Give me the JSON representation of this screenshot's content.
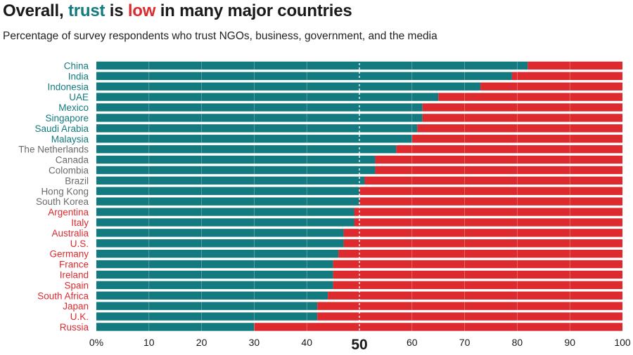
{
  "title": {
    "part1": "Overall, ",
    "part2": "trust",
    "part3": " is ",
    "part4": "low",
    "part5": " in many major countries"
  },
  "subtitle": "Percentage of survey respondents who trust NGOs, business, government, and the media",
  "colors": {
    "trust": "#137b7f",
    "distrust": "#dd2a2f",
    "neutral_label": "#6b6b6b",
    "midline": "#ffffff"
  },
  "chart_data": {
    "type": "bar",
    "orientation": "horizontal",
    "stacked": true,
    "categories": [
      "China",
      "India",
      "Indonesia",
      "UAE",
      "Mexico",
      "Singapore",
      "Saudi Arabia",
      "Malaysia",
      "The Netherlands",
      "Canada",
      "Colombia",
      "Brazil",
      "Hong Kong",
      "South Korea",
      "Argentina",
      "Italy",
      "Australia",
      "U.S.",
      "Germany",
      "France",
      "Ireland",
      "Spain",
      "South Africa",
      "Japan",
      "U.K.",
      "Russia"
    ],
    "values": [
      82,
      79,
      73,
      65,
      62,
      62,
      61,
      60,
      57,
      53,
      53,
      51,
      50,
      50,
      49,
      49,
      47,
      47,
      46,
      45,
      45,
      45,
      44,
      42,
      42,
      30
    ],
    "label_groups": [
      "trust",
      "trust",
      "trust",
      "trust",
      "trust",
      "trust",
      "trust",
      "trust",
      "neutral",
      "neutral",
      "neutral",
      "neutral",
      "neutral",
      "neutral",
      "distrust",
      "distrust",
      "distrust",
      "distrust",
      "distrust",
      "distrust",
      "distrust",
      "distrust",
      "distrust",
      "distrust",
      "distrust",
      "distrust"
    ],
    "xlim": [
      0,
      100
    ],
    "xticks": [
      "0%",
      "10",
      "20",
      "30",
      "40",
      "50",
      "60",
      "70",
      "80",
      "90",
      "100"
    ],
    "highlight_tick": "50",
    "reference_line": 50,
    "grid": true
  }
}
